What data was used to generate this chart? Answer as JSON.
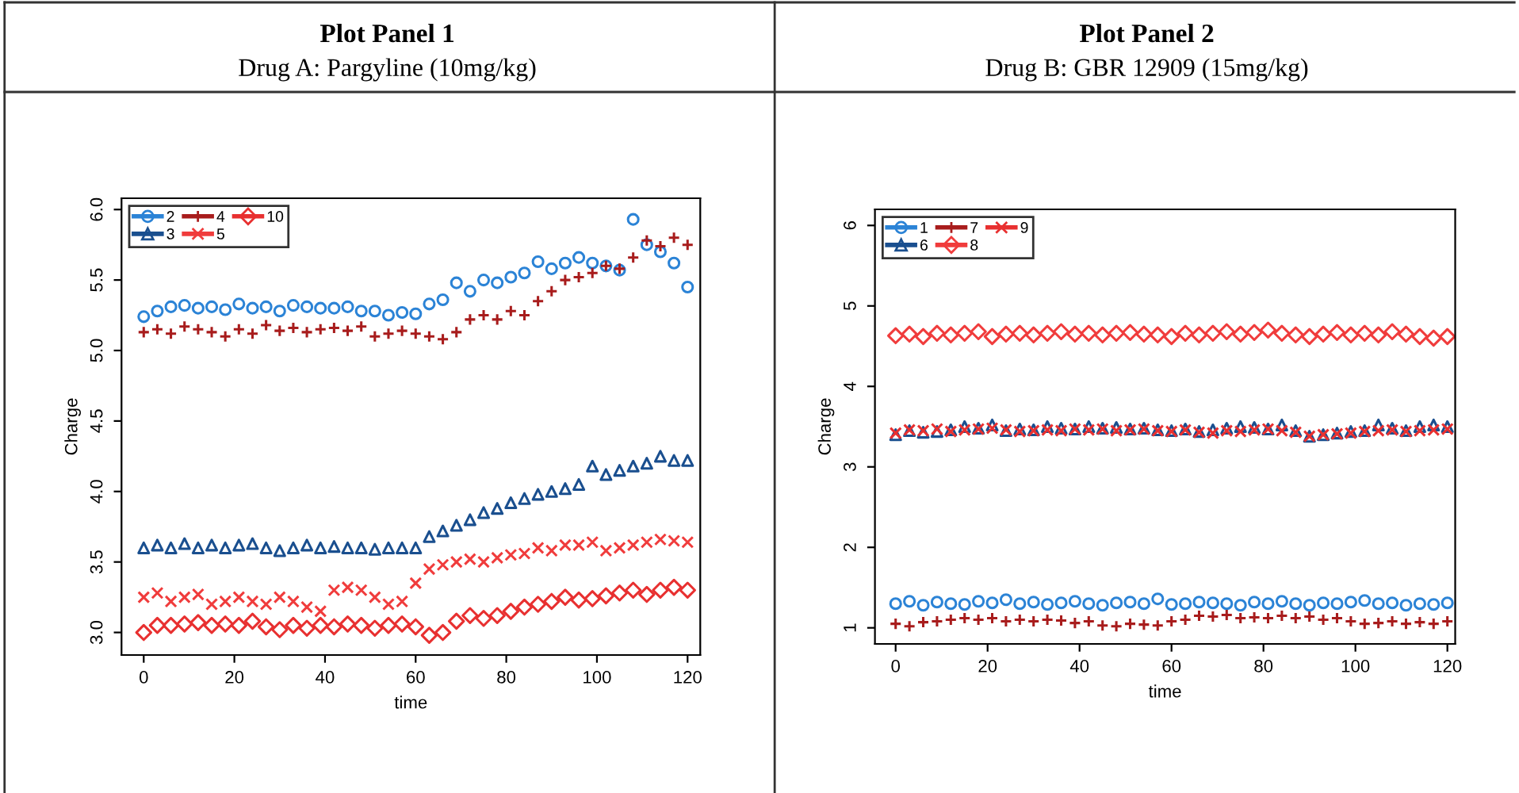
{
  "chart_data": [
    {
      "type": "scatter",
      "title": "Plot Panel 1",
      "subtitle": "Drug A: Pargyline (10mg/kg)",
      "xlabel": "time",
      "ylabel": "Charge",
      "x": [
        0,
        3,
        6,
        9,
        12,
        15,
        18,
        21,
        24,
        27,
        30,
        33,
        36,
        39,
        42,
        45,
        48,
        51,
        54,
        57,
        60,
        63,
        66,
        69,
        72,
        75,
        78,
        81,
        84,
        87,
        90,
        93,
        96,
        99,
        102,
        105,
        108,
        111,
        114,
        117,
        120
      ],
      "xlim": [
        -4.9,
        122.8
      ],
      "xticks": [
        0,
        20,
        40,
        60,
        80,
        100,
        120
      ],
      "ylim": [
        2.84,
        6.08
      ],
      "yticks": [
        {
          "value": 3,
          "label": "3.0"
        },
        3.5,
        {
          "value": 4,
          "label": "4.0"
        },
        4.5,
        {
          "value": 5,
          "label": "5.0"
        },
        5.5,
        {
          "value": 6,
          "label": "6.0"
        }
      ],
      "grid": false,
      "legend": "top left",
      "series": [
        {
          "name": "2",
          "color": "#2b83d6",
          "marker": "circle",
          "values": [
            5.24,
            5.28,
            5.31,
            5.32,
            5.3,
            5.31,
            5.29,
            5.33,
            5.3,
            5.31,
            5.28,
            5.32,
            5.31,
            5.3,
            5.3,
            5.31,
            5.28,
            5.28,
            5.25,
            5.27,
            5.26,
            5.33,
            5.36,
            5.48,
            5.42,
            5.5,
            5.48,
            5.52,
            5.55,
            5.63,
            5.58,
            5.62,
            5.66,
            5.62,
            5.6,
            5.57,
            5.93,
            5.75,
            5.7,
            5.62,
            5.45
          ]
        },
        {
          "name": "3",
          "color": "#1a4f8f",
          "marker": "triangle",
          "values": [
            3.6,
            3.62,
            3.6,
            3.63,
            3.6,
            3.62,
            3.6,
            3.62,
            3.63,
            3.6,
            3.58,
            3.6,
            3.62,
            3.6,
            3.61,
            3.6,
            3.6,
            3.59,
            3.6,
            3.6,
            3.6,
            3.68,
            3.72,
            3.76,
            3.8,
            3.85,
            3.88,
            3.92,
            3.95,
            3.98,
            4.0,
            4.02,
            4.05,
            4.18,
            4.12,
            4.15,
            4.18,
            4.2,
            4.25,
            4.22,
            4.22
          ]
        },
        {
          "name": "4",
          "color": "#a81c1c",
          "marker": "plus",
          "values": [
            5.13,
            5.15,
            5.12,
            5.17,
            5.15,
            5.13,
            5.1,
            5.15,
            5.12,
            5.18,
            5.14,
            5.16,
            5.13,
            5.15,
            5.16,
            5.14,
            5.17,
            5.1,
            5.12,
            5.14,
            5.12,
            5.1,
            5.08,
            5.13,
            5.22,
            5.25,
            5.22,
            5.28,
            5.25,
            5.35,
            5.42,
            5.5,
            5.52,
            5.55,
            5.6,
            5.58,
            5.66,
            5.78,
            5.74,
            5.8,
            5.75
          ]
        },
        {
          "name": "5",
          "color": "#f03c3c",
          "marker": "cross",
          "values": [
            3.25,
            3.28,
            3.22,
            3.25,
            3.27,
            3.2,
            3.22,
            3.25,
            3.22,
            3.2,
            3.25,
            3.22,
            3.18,
            3.15,
            3.3,
            3.32,
            3.3,
            3.25,
            3.2,
            3.22,
            3.35,
            3.45,
            3.48,
            3.5,
            3.52,
            3.5,
            3.53,
            3.55,
            3.56,
            3.6,
            3.58,
            3.62,
            3.62,
            3.64,
            3.58,
            3.6,
            3.62,
            3.64,
            3.66,
            3.65,
            3.64
          ]
        },
        {
          "name": "10",
          "color": "#e83030",
          "marker": "diamond",
          "values": [
            3.0,
            3.05,
            3.05,
            3.06,
            3.07,
            3.05,
            3.06,
            3.05,
            3.08,
            3.04,
            3.02,
            3.05,
            3.03,
            3.05,
            3.04,
            3.06,
            3.05,
            3.03,
            3.05,
            3.06,
            3.04,
            2.98,
            3.0,
            3.08,
            3.12,
            3.1,
            3.12,
            3.15,
            3.18,
            3.2,
            3.22,
            3.25,
            3.23,
            3.24,
            3.26,
            3.28,
            3.3,
            3.27,
            3.3,
            3.32,
            3.3
          ]
        }
      ]
    },
    {
      "type": "scatter",
      "title": "Plot Panel 2",
      "subtitle": "Drug B: GBR 12909 (15mg/kg)",
      "xlabel": "time",
      "ylabel": "Charge",
      "x": [
        0,
        3,
        6,
        9,
        12,
        15,
        18,
        21,
        24,
        27,
        30,
        33,
        36,
        39,
        42,
        45,
        48,
        51,
        54,
        57,
        60,
        63,
        66,
        69,
        72,
        75,
        78,
        81,
        84,
        87,
        90,
        93,
        96,
        99,
        102,
        105,
        108,
        111,
        114,
        117,
        120
      ],
      "xlim": [
        -4.5,
        121.7
      ],
      "xticks": [
        0,
        20,
        40,
        60,
        80,
        100,
        120
      ],
      "ylim": [
        0.8,
        6.2
      ],
      "yticks": [
        1,
        2,
        3,
        4,
        5,
        6
      ],
      "grid": false,
      "legend": "top left",
      "series": [
        {
          "name": "1",
          "color": "#2b83d6",
          "marker": "circle",
          "values": [
            1.3,
            1.33,
            1.28,
            1.32,
            1.3,
            1.29,
            1.33,
            1.31,
            1.35,
            1.3,
            1.32,
            1.29,
            1.31,
            1.33,
            1.3,
            1.28,
            1.31,
            1.32,
            1.3,
            1.36,
            1.29,
            1.3,
            1.32,
            1.31,
            1.3,
            1.28,
            1.32,
            1.3,
            1.33,
            1.3,
            1.28,
            1.31,
            1.3,
            1.32,
            1.34,
            1.3,
            1.31,
            1.28,
            1.3,
            1.29,
            1.31
          ]
        },
        {
          "name": "6",
          "color": "#1a4f8f",
          "marker": "triangle",
          "values": [
            3.4,
            3.45,
            3.43,
            3.44,
            3.46,
            3.5,
            3.48,
            3.52,
            3.45,
            3.47,
            3.46,
            3.5,
            3.48,
            3.47,
            3.5,
            3.48,
            3.49,
            3.47,
            3.48,
            3.46,
            3.45,
            3.47,
            3.44,
            3.46,
            3.48,
            3.5,
            3.49,
            3.47,
            3.52,
            3.45,
            3.38,
            3.4,
            3.42,
            3.44,
            3.45,
            3.52,
            3.48,
            3.45,
            3.5,
            3.52,
            3.5
          ]
        },
        {
          "name": "7",
          "color": "#a81c1c",
          "marker": "plus",
          "values": [
            1.05,
            1.02,
            1.07,
            1.08,
            1.1,
            1.12,
            1.1,
            1.12,
            1.08,
            1.1,
            1.08,
            1.1,
            1.09,
            1.06,
            1.08,
            1.03,
            1.02,
            1.05,
            1.04,
            1.03,
            1.08,
            1.1,
            1.15,
            1.14,
            1.16,
            1.12,
            1.13,
            1.12,
            1.15,
            1.12,
            1.14,
            1.1,
            1.12,
            1.08,
            1.05,
            1.06,
            1.08,
            1.05,
            1.07,
            1.05,
            1.08
          ]
        },
        {
          "name": "8",
          "color": "#f03c3c",
          "marker": "diamond",
          "values": [
            4.63,
            4.65,
            4.62,
            4.66,
            4.64,
            4.66,
            4.68,
            4.62,
            4.65,
            4.66,
            4.64,
            4.66,
            4.68,
            4.65,
            4.66,
            4.64,
            4.66,
            4.67,
            4.65,
            4.64,
            4.62,
            4.66,
            4.64,
            4.66,
            4.68,
            4.65,
            4.67,
            4.7,
            4.66,
            4.64,
            4.62,
            4.65,
            4.67,
            4.64,
            4.66,
            4.64,
            4.68,
            4.65,
            4.62,
            4.6,
            4.62
          ]
        },
        {
          "name": "9",
          "color": "#e83030",
          "marker": "cross",
          "values": [
            3.42,
            3.46,
            3.45,
            3.47,
            3.44,
            3.46,
            3.47,
            3.48,
            3.46,
            3.44,
            3.45,
            3.46,
            3.45,
            3.47,
            3.46,
            3.47,
            3.45,
            3.46,
            3.47,
            3.45,
            3.44,
            3.46,
            3.43,
            3.42,
            3.45,
            3.44,
            3.46,
            3.47,
            3.45,
            3.43,
            3.38,
            3.4,
            3.41,
            3.42,
            3.44,
            3.45,
            3.46,
            3.44,
            3.45,
            3.46,
            3.47
          ]
        }
      ]
    }
  ]
}
